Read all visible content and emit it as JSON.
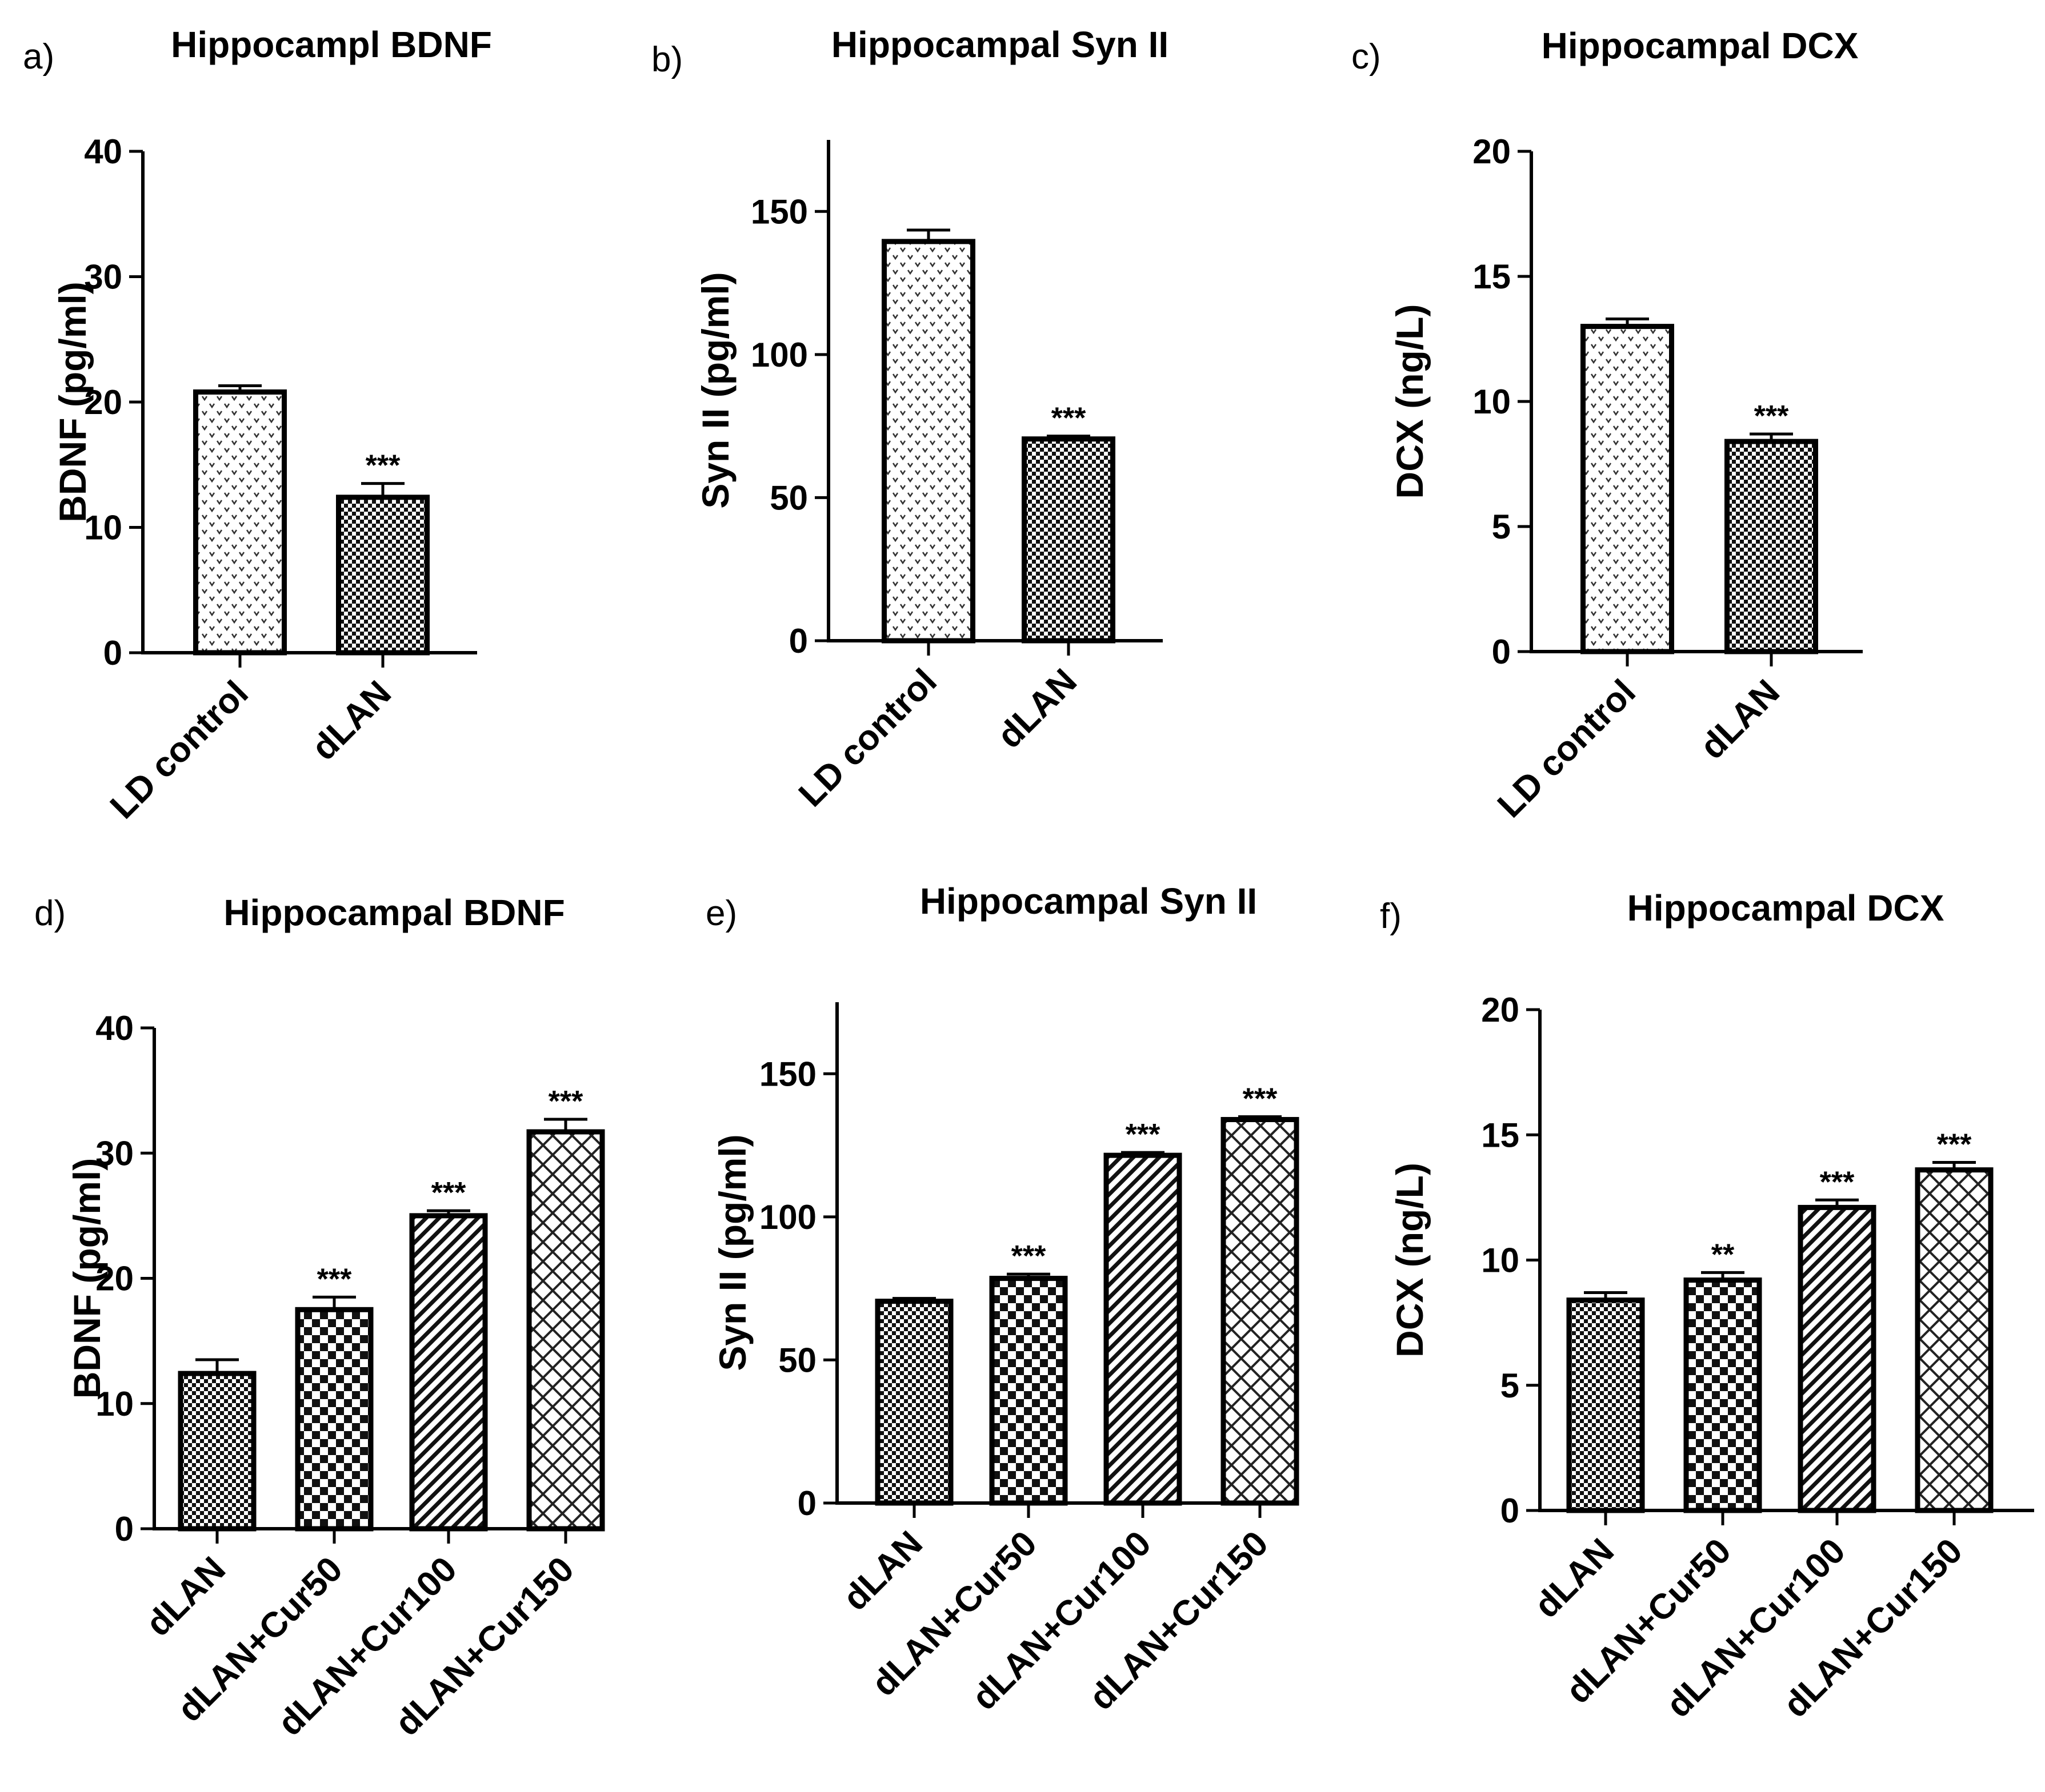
{
  "chart_data": [
    {
      "panel": "a)",
      "type": "bar",
      "title": "Hippocampl BDNF",
      "ylabel": "BDNF (pg/ml)",
      "ylim": [
        0,
        40
      ],
      "yticks": [
        "0",
        "10",
        "20",
        "30",
        "40"
      ],
      "categories": [
        "LD control",
        "dLAN"
      ],
      "values": [
        20.8,
        12.4
      ],
      "errors": [
        0.5,
        1.1
      ],
      "significance": [
        "",
        "***"
      ],
      "patterns": [
        "dots",
        "check-fine"
      ]
    },
    {
      "panel": "b)",
      "type": "bar",
      "title": "Hippocampal Syn II",
      "ylabel": "Syn II (pg/ml)",
      "ylim": [
        0,
        175
      ],
      "yticks": [
        "0",
        "50",
        "100",
        "150"
      ],
      "categories": [
        "LD control",
        "dLAN"
      ],
      "values": [
        139.5,
        70.5
      ],
      "errors": [
        4,
        1
      ],
      "significance": [
        "",
        "***"
      ],
      "patterns": [
        "dots",
        "check-fine"
      ]
    },
    {
      "panel": "c)",
      "type": "bar",
      "title": "Hippocampal DCX",
      "ylabel": "DCX (ng/L)",
      "ylim": [
        0,
        20
      ],
      "yticks": [
        "0",
        "5",
        "10",
        "15",
        "20"
      ],
      "categories": [
        "LD control",
        "dLAN"
      ],
      "values": [
        13.0,
        8.4
      ],
      "errors": [
        0.3,
        0.3
      ],
      "significance": [
        "",
        "***"
      ],
      "patterns": [
        "dots",
        "check-fine"
      ]
    },
    {
      "panel": "d)",
      "type": "bar",
      "title": "Hippocampal BDNF",
      "ylabel": "BDNF (pg/ml)",
      "ylim": [
        0,
        40
      ],
      "yticks": [
        "0",
        "10",
        "20",
        "30",
        "40"
      ],
      "categories": [
        "dLAN",
        "dLAN+Cur50",
        "dLAN+Cur100",
        "dLAN+Cur150"
      ],
      "values": [
        12.4,
        17.5,
        25.0,
        31.7
      ],
      "errors": [
        1.1,
        1.0,
        0.4,
        1.0
      ],
      "significance": [
        "",
        "***",
        "***",
        "***"
      ],
      "patterns": [
        "check-fine",
        "check-coarse",
        "diag",
        "crosshatch"
      ]
    },
    {
      "panel": "e)",
      "type": "bar",
      "title": "Hippocampal Syn II",
      "ylabel": "Syn II (pg/ml)",
      "ylim": [
        0,
        175
      ],
      "yticks": [
        "0",
        "50",
        "100",
        "150"
      ],
      "categories": [
        "dLAN",
        "dLAN+Cur50",
        "dLAN+Cur100",
        "dLAN+Cur150"
      ],
      "values": [
        70.5,
        78.5,
        121.5,
        134.0
      ],
      "errors": [
        1,
        1.5,
        1,
        1
      ],
      "significance": [
        "",
        "***",
        "***",
        "***"
      ],
      "patterns": [
        "check-fine",
        "check-coarse",
        "diag",
        "crosshatch"
      ]
    },
    {
      "panel": "f)",
      "type": "bar",
      "title": "Hippocampal DCX",
      "ylabel": "DCX (ng/L)",
      "ylim": [
        0,
        20
      ],
      "yticks": [
        "0",
        "5",
        "10",
        "15",
        "20"
      ],
      "categories": [
        "dLAN",
        "dLAN+Cur50",
        "dLAN+Cur100",
        "dLAN+Cur150"
      ],
      "values": [
        8.4,
        9.2,
        12.1,
        13.6
      ],
      "errors": [
        0.3,
        0.3,
        0.3,
        0.3
      ],
      "significance": [
        "",
        "**",
        "***",
        "***"
      ],
      "patterns": [
        "check-fine",
        "check-coarse",
        "diag",
        "crosshatch"
      ]
    }
  ]
}
